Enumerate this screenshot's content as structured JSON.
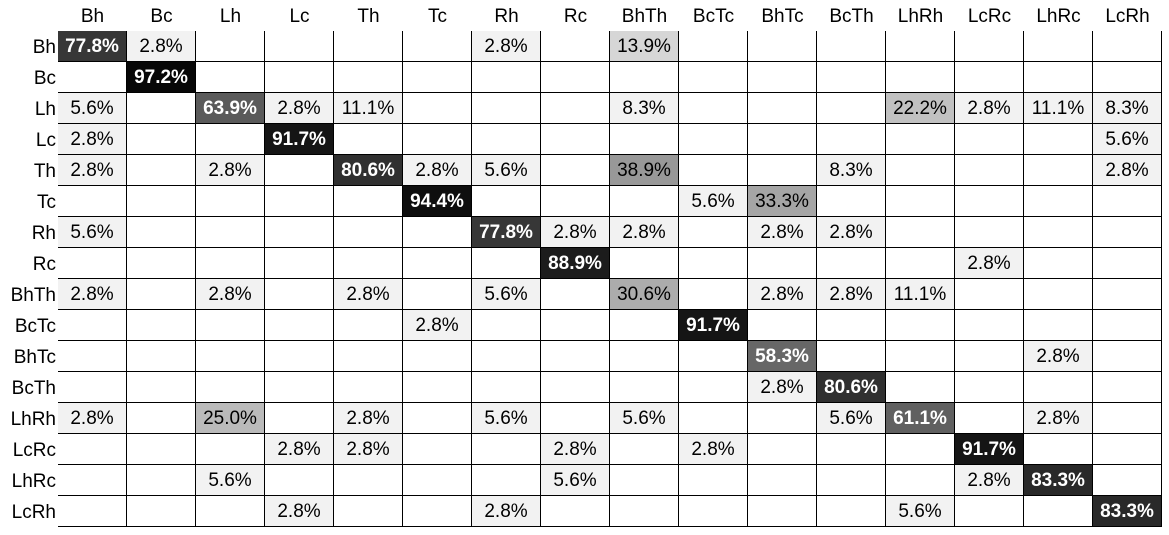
{
  "chart_data": {
    "type": "heatmap",
    "row_labels": [
      "Bh",
      "Bc",
      "Lh",
      "Lc",
      "Th",
      "Tc",
      "Rh",
      "Rc",
      "BhTh",
      "BcTc",
      "BhTc",
      "BcTh",
      "LhRh",
      "LcRc",
      "LhRc",
      "LcRh"
    ],
    "col_labels": [
      "Bh",
      "Bc",
      "Lh",
      "Lc",
      "Th",
      "Tc",
      "Rh",
      "Rc",
      "BhTh",
      "BcTc",
      "BhTc",
      "BcTh",
      "LhRh",
      "LcRc",
      "LhRc",
      "LcRh"
    ],
    "cells": [
      [
        "77.8%",
        "2.8%",
        "",
        "",
        "",
        "",
        "2.8%",
        "",
        "13.9%",
        "",
        "",
        "",
        "",
        "",
        "",
        ""
      ],
      [
        "",
        "97.2%",
        "",
        "",
        "",
        "",
        "",
        "",
        "",
        "",
        "",
        "",
        "",
        "",
        "",
        ""
      ],
      [
        "5.6%",
        "",
        "63.9%",
        "2.8%",
        "11.1%",
        "",
        "",
        "",
        "8.3%",
        "",
        "",
        "",
        "22.2%",
        "2.8%",
        "11.1%",
        "8.3%"
      ],
      [
        "2.8%",
        "",
        "",
        "91.7%",
        "",
        "",
        "",
        "",
        "",
        "",
        "",
        "",
        "",
        "",
        "",
        "5.6%"
      ],
      [
        "2.8%",
        "",
        "2.8%",
        "",
        "80.6%",
        "2.8%",
        "5.6%",
        "",
        "38.9%",
        "",
        "",
        "8.3%",
        "",
        "",
        "",
        "2.8%"
      ],
      [
        "",
        "",
        "",
        "",
        "",
        "94.4%",
        "",
        "",
        "",
        "5.6%",
        "33.3%",
        "",
        "",
        "",
        "",
        ""
      ],
      [
        "5.6%",
        "",
        "",
        "",
        "",
        "",
        "77.8%",
        "2.8%",
        "2.8%",
        "",
        "2.8%",
        "2.8%",
        "",
        "",
        "",
        ""
      ],
      [
        "",
        "",
        "",
        "",
        "",
        "",
        "",
        "88.9%",
        "",
        "",
        "",
        "",
        "",
        "2.8%",
        "",
        ""
      ],
      [
        "2.8%",
        "",
        "2.8%",
        "",
        "2.8%",
        "",
        "5.6%",
        "",
        "30.6%",
        "",
        "2.8%",
        "2.8%",
        "11.1%",
        "",
        "",
        ""
      ],
      [
        "",
        "",
        "",
        "",
        "",
        "2.8%",
        "",
        "",
        "",
        "91.7%",
        "",
        "",
        "",
        "",
        "",
        ""
      ],
      [
        "",
        "",
        "",
        "",
        "",
        "",
        "",
        "",
        "",
        "",
        "58.3%",
        "",
        "",
        "",
        "2.8%",
        ""
      ],
      [
        "",
        "",
        "",
        "",
        "",
        "",
        "",
        "",
        "",
        "",
        "2.8%",
        "80.6%",
        "",
        "",
        "",
        ""
      ],
      [
        "2.8%",
        "",
        "25.0%",
        "",
        "2.8%",
        "",
        "5.6%",
        "",
        "5.6%",
        "",
        "",
        "5.6%",
        "61.1%",
        "",
        "2.8%",
        ""
      ],
      [
        "",
        "",
        "",
        "2.8%",
        "2.8%",
        "",
        "",
        "2.8%",
        "",
        "2.8%",
        "",
        "",
        "",
        "91.7%",
        "",
        ""
      ],
      [
        "",
        "",
        "5.6%",
        "",
        "",
        "",
        "",
        "5.6%",
        "",
        "",
        "",
        "",
        "",
        "2.8%",
        "83.3%",
        ""
      ],
      [
        "",
        "",
        "",
        "2.8%",
        "",
        "",
        "2.8%",
        "",
        "",
        "",
        "",
        "",
        "5.6%",
        "",
        "",
        "83.3%"
      ]
    ],
    "grid": true
  }
}
